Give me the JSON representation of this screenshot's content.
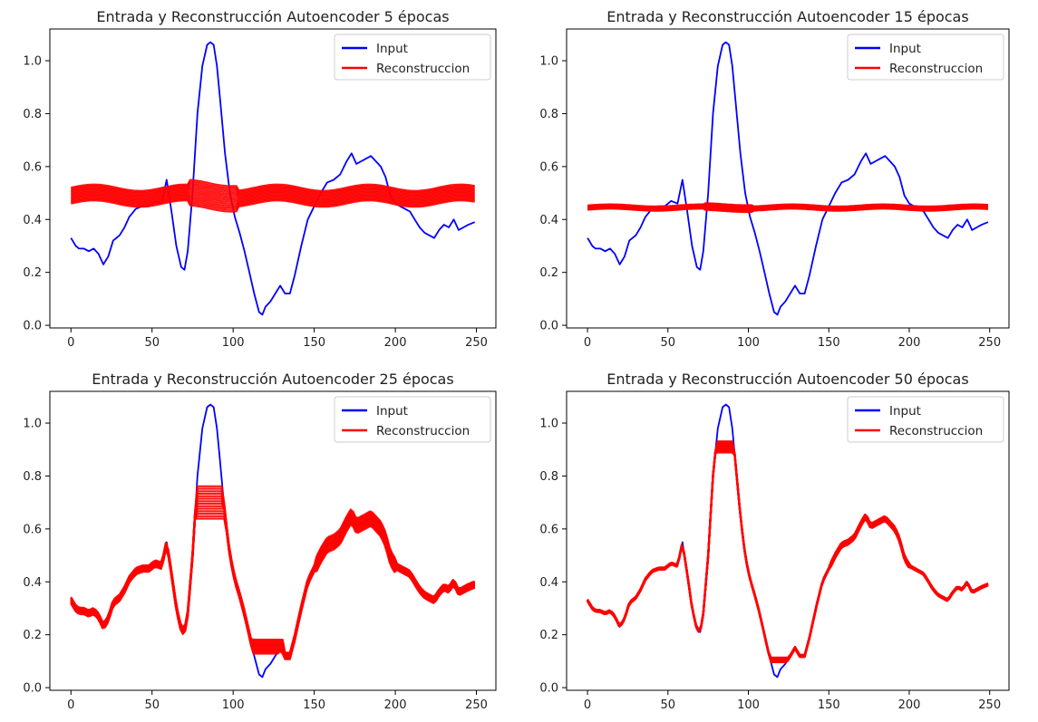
{
  "chart_data": [
    {
      "type": "line",
      "title": "Entrada y Reconstrucción Autoencoder 5 épocas",
      "xlim": [
        -13,
        262
      ],
      "ylim": [
        -0.01,
        1.12
      ],
      "xticks": [
        0,
        50,
        100,
        150,
        200,
        250
      ],
      "yticks": [
        0.0,
        0.2,
        0.4,
        0.6,
        0.8,
        1.0
      ],
      "ytick_labels": [
        "0.0",
        "0.2",
        "0.4",
        "0.6",
        "0.8",
        "1.0"
      ],
      "legend_position": "top-right",
      "recon_model": "flat",
      "recon_base": 0.49,
      "recon_band": 0.03,
      "series": [
        {
          "name": "Input",
          "color": "#0000ff"
        },
        {
          "name": "Reconstruccion",
          "color": "#ff0000"
        }
      ]
    },
    {
      "type": "line",
      "title": "Entrada y Reconstrucción Autoencoder 15 épocas",
      "xlim": [
        -13,
        262
      ],
      "ylim": [
        -0.01,
        1.12
      ],
      "xticks": [
        0,
        50,
        100,
        150,
        200,
        250
      ],
      "yticks": [
        0.0,
        0.2,
        0.4,
        0.6,
        0.8,
        1.0
      ],
      "ytick_labels": [
        "0.0",
        "0.2",
        "0.4",
        "0.6",
        "0.8",
        "1.0"
      ],
      "legend_position": "top-right",
      "recon_model": "flat",
      "recon_base": 0.445,
      "recon_band": 0.008,
      "series": [
        {
          "name": "Input",
          "color": "#0000ff"
        },
        {
          "name": "Reconstruccion",
          "color": "#ff0000"
        }
      ]
    },
    {
      "type": "line",
      "title": "Entrada y Reconstrucción Autoencoder 25 épocas",
      "xlim": [
        -13,
        262
      ],
      "ylim": [
        -0.01,
        1.12
      ],
      "xticks": [
        0,
        50,
        100,
        150,
        200,
        250
      ],
      "yticks": [
        0.0,
        0.2,
        0.4,
        0.6,
        0.8,
        1.0
      ],
      "ytick_labels": [
        "0.0",
        "0.2",
        "0.4",
        "0.6",
        "0.8",
        "1.0"
      ],
      "legend_position": "top-right",
      "recon_model": "follow",
      "recon_clip_high": 0.7,
      "recon_clip_low": 0.155,
      "recon_band": 0.035,
      "series": [
        {
          "name": "Input",
          "color": "#0000ff"
        },
        {
          "name": "Reconstruccion",
          "color": "#ff0000"
        }
      ]
    },
    {
      "type": "line",
      "title": "Entrada y Reconstrucción Autoencoder 50 épocas",
      "xlim": [
        -13,
        262
      ],
      "ylim": [
        -0.01,
        1.12
      ],
      "xticks": [
        0,
        50,
        100,
        150,
        200,
        250
      ],
      "yticks": [
        0.0,
        0.2,
        0.4,
        0.6,
        0.8,
        1.0
      ],
      "ytick_labels": [
        "0.0",
        "0.2",
        "0.4",
        "0.6",
        "0.8",
        "1.0"
      ],
      "legend_position": "top-right",
      "recon_model": "follow",
      "recon_clip_high": 0.91,
      "recon_clip_low": 0.105,
      "recon_band": 0.012,
      "series": [
        {
          "name": "Input",
          "color": "#0000ff"
        },
        {
          "name": "Reconstruccion",
          "color": "#ff0000"
        }
      ]
    }
  ],
  "input_signal": {
    "x": [
      0,
      3,
      5,
      8,
      11,
      14,
      17,
      20,
      23,
      26,
      30,
      33,
      36,
      40,
      44,
      48,
      52,
      56,
      59,
      62,
      65,
      68,
      70,
      72,
      75,
      78,
      81,
      84,
      86,
      88,
      90,
      92,
      95,
      98,
      101,
      104,
      107,
      110,
      113,
      116,
      118,
      120,
      123,
      126,
      129,
      132,
      135,
      138,
      142,
      146,
      150,
      154,
      158,
      162,
      166,
      170,
      173,
      176,
      179,
      182,
      185,
      188,
      191,
      194,
      197,
      200,
      203,
      206,
      209,
      212,
      215,
      218,
      221,
      224,
      227,
      230,
      233,
      236,
      239,
      242,
      245,
      249
    ],
    "y": [
      0.33,
      0.3,
      0.29,
      0.29,
      0.28,
      0.29,
      0.27,
      0.23,
      0.26,
      0.32,
      0.34,
      0.37,
      0.41,
      0.44,
      0.45,
      0.45,
      0.47,
      0.46,
      0.55,
      0.43,
      0.3,
      0.22,
      0.21,
      0.28,
      0.5,
      0.8,
      0.98,
      1.06,
      1.07,
      1.06,
      0.98,
      0.85,
      0.65,
      0.5,
      0.41,
      0.35,
      0.28,
      0.2,
      0.12,
      0.05,
      0.04,
      0.07,
      0.09,
      0.12,
      0.15,
      0.12,
      0.12,
      0.19,
      0.3,
      0.4,
      0.45,
      0.5,
      0.54,
      0.55,
      0.57,
      0.62,
      0.65,
      0.61,
      0.62,
      0.63,
      0.64,
      0.62,
      0.6,
      0.56,
      0.49,
      0.46,
      0.45,
      0.44,
      0.43,
      0.4,
      0.37,
      0.35,
      0.34,
      0.33,
      0.36,
      0.38,
      0.37,
      0.4,
      0.36,
      0.37,
      0.38,
      0.39
    ]
  }
}
